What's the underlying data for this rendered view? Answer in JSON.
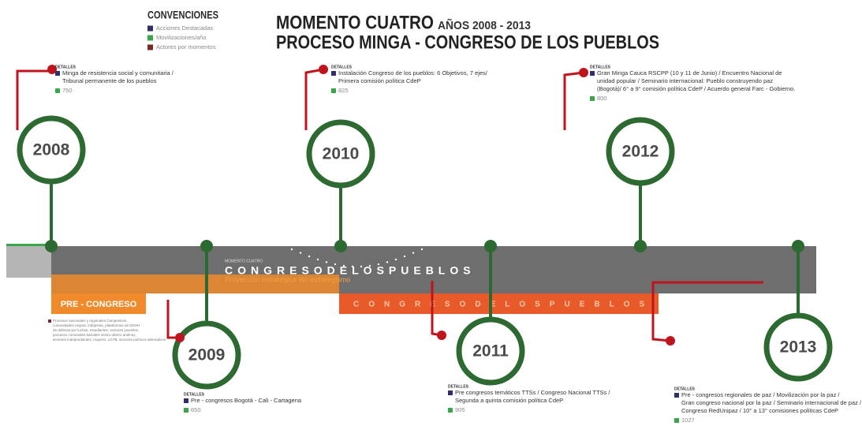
{
  "legend": {
    "title": "CONVENCIONES",
    "items": [
      {
        "label": "Acciones Destacadas",
        "color": "#2e2f6b"
      },
      {
        "label": "Movilizaciones/año",
        "color": "#3aa64a"
      },
      {
        "label": "Actores por momentos",
        "color": "#7a2a22"
      }
    ]
  },
  "header": {
    "title": "MOMENTO CUATRO",
    "years": "AÑOS 2008 - 2013",
    "subtitle": "PROCESO MINGA - CONGRESO DE LOS PUEBLOS"
  },
  "band": {
    "kicker": "MOMENTO CUATRO",
    "upper": "CONGRESODELOSPUEBLOS",
    "tagline": "Proyección estratégica sin estrategismo",
    "lower": "CONGRESODELOSPUEBLOS",
    "pre": "PRE - CONGRESO",
    "actors": [
      "Procesos nacionales y regionales Campesinos,",
      "comunidades negras, indígenas, plataformas de DDHH",
      "de defensa por luchas, estudiantes, sectores juveniles,",
      "procesos comunales barriales sector obrero andinos,",
      "sectores independientes, mujeres, LGTB, sectores políticos alternativos"
    ]
  },
  "milestones": [
    {
      "year": "2008",
      "details": "DETALLES",
      "lines": [
        "Minga de resistencia social y comunitaria /",
        "Tribunal permanente de los pueblos"
      ],
      "count": 750
    },
    {
      "year": "2010",
      "details": "DETALLES",
      "lines": [
        "Instalación Congreso de los pueblos: 6 Objetivos, 7 ejes/",
        "Primera comisión política CdeP"
      ],
      "count": 825
    },
    {
      "year": "2012",
      "details": "DETALLES",
      "lines": [
        "Gran Minga Cauca RSCPP (10 y 11 de Junio) / Encuentro Nacional de",
        "unidad popular / Seminario internacional: Pueblo construyendo paz",
        "(Bogotá)/ 6° a 9° comisión política CdeP / Acuerdo general Farc - Gobierno."
      ],
      "count": 800
    },
    {
      "year": "2009",
      "details": "DETALLES",
      "lines": [
        "Pre - congresos Bogotá - Cali - Cartagena"
      ],
      "count": 650
    },
    {
      "year": "2011",
      "details": "DETALLES",
      "lines": [
        "Pre congresos temáticos TTSs / Congreso Nacional TTSs /",
        "Segunda a quinta comisión política CdeP"
      ],
      "count": 905
    },
    {
      "year": "2013",
      "details": "DETALLES",
      "lines": [
        "Pre - congresos regionales de paz / Movilización por la paz /",
        "Gran congreso nacional por la paz / Seminario internacional de paz /",
        "Congreso RedUnipaz / 10° a 13° comisiones políticas CdeP"
      ],
      "count": 1027
    }
  ]
}
